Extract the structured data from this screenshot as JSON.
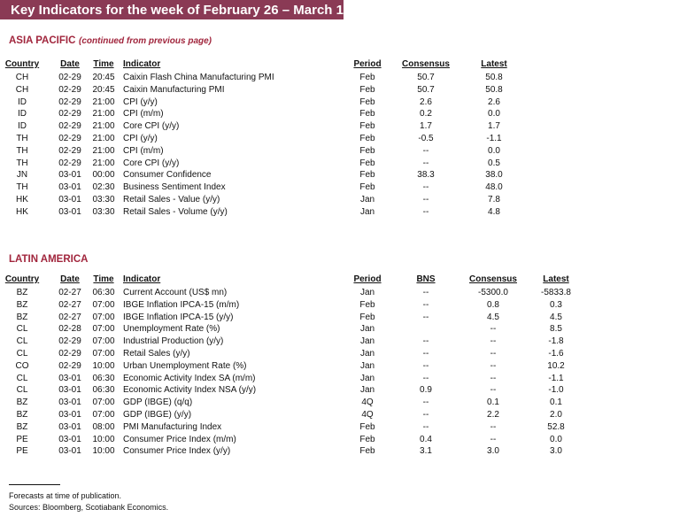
{
  "header": {
    "title": "Key Indicators for the week of February 26 – March 1"
  },
  "sections": [
    {
      "title": "ASIA PACIFIC",
      "subtitle": "(continued from previous page)",
      "columns": [
        "Country",
        "Date",
        "Time",
        "Indicator",
        "Period",
        "Consensus",
        "Latest"
      ],
      "rows": [
        [
          "CH",
          "02-29",
          "20:45",
          "Caixin Flash China Manufacturing PMI",
          "Feb",
          "50.7",
          "50.8"
        ],
        [
          "CH",
          "02-29",
          "20:45",
          "Caixin Manufacturing PMI",
          "Feb",
          "50.7",
          "50.8"
        ],
        [
          "ID",
          "02-29",
          "21:00",
          "CPI (y/y)",
          "Feb",
          "2.6",
          "2.6"
        ],
        [
          "ID",
          "02-29",
          "21:00",
          "CPI (m/m)",
          "Feb",
          "0.2",
          "0.0"
        ],
        [
          "ID",
          "02-29",
          "21:00",
          "Core CPI (y/y)",
          "Feb",
          "1.7",
          "1.7"
        ],
        [
          "TH",
          "02-29",
          "21:00",
          "CPI (y/y)",
          "Feb",
          "-0.5",
          "-1.1"
        ],
        [
          "TH",
          "02-29",
          "21:00",
          "CPI (m/m)",
          "Feb",
          "--",
          "0.0"
        ],
        [
          "TH",
          "02-29",
          "21:00",
          "Core CPI (y/y)",
          "Feb",
          "--",
          "0.5"
        ],
        [
          "JN",
          "03-01",
          "00:00",
          "Consumer Confidence",
          "Feb",
          "38.3",
          "38.0"
        ],
        [
          "TH",
          "03-01",
          "02:30",
          "Business Sentiment Index",
          "Feb",
          "--",
          "48.0"
        ],
        [
          "HK",
          "03-01",
          "03:30",
          "Retail Sales - Value (y/y)",
          "Jan",
          "--",
          "7.8"
        ],
        [
          "HK",
          "03-01",
          "03:30",
          "Retail Sales - Volume (y/y)",
          "Jan",
          "--",
          "4.8"
        ]
      ]
    },
    {
      "title": "LATIN AMERICA",
      "columns": [
        "Country",
        "Date",
        "Time",
        "Indicator",
        "Period",
        "BNS",
        "Consensus",
        "Latest"
      ],
      "rows": [
        [
          "BZ",
          "02-27",
          "06:30",
          "Current Account (US$ mn)",
          "Jan",
          "--",
          "-5300.0",
          "-5833.8"
        ],
        [
          "BZ",
          "02-27",
          "07:00",
          "IBGE Inflation IPCA-15 (m/m)",
          "Feb",
          "--",
          "0.8",
          "0.3"
        ],
        [
          "BZ",
          "02-27",
          "07:00",
          "IBGE Inflation IPCA-15 (y/y)",
          "Feb",
          "--",
          "4.5",
          "4.5"
        ],
        [
          "CL",
          "02-28",
          "07:00",
          "Unemployment Rate (%)",
          "Jan",
          null,
          "--",
          "8.5"
        ],
        [
          "CL",
          "02-29",
          "07:00",
          "Industrial Production (y/y)",
          "Jan",
          "--",
          "--",
          "-1.8"
        ],
        [
          "CL",
          "02-29",
          "07:00",
          "Retail Sales (y/y)",
          "Jan",
          "--",
          "--",
          "-1.6"
        ],
        [
          "CO",
          "02-29",
          "10:00",
          "Urban Unemployment Rate (%)",
          "Jan",
          "--",
          "--",
          "10.2"
        ],
        [
          "CL",
          "03-01",
          "06:30",
          "Economic Activity Index SA (m/m)",
          "Jan",
          "--",
          "--",
          "-1.1"
        ],
        [
          "CL",
          "03-01",
          "06:30",
          "Economic Activity Index NSA (y/y)",
          "Jan",
          "0.9",
          "--",
          "-1.0"
        ],
        [
          "BZ",
          "03-01",
          "07:00",
          "GDP (IBGE) (q/q)",
          "4Q",
          "--",
          "0.1",
          "0.1"
        ],
        [
          "BZ",
          "03-01",
          "07:00",
          "GDP (IBGE) (y/y)",
          "4Q",
          "--",
          "2.2",
          "2.0"
        ],
        [
          "BZ",
          "03-01",
          "08:00",
          "PMI Manufacturing Index",
          "Feb",
          "--",
          "--",
          "52.8"
        ],
        [
          "PE",
          "03-01",
          "10:00",
          "Consumer Price Index (m/m)",
          "Feb",
          "0.4",
          "--",
          "0.0"
        ],
        [
          "PE",
          "03-01",
          "10:00",
          "Consumer Price Index (y/y)",
          "Feb",
          "3.1",
          "3.0",
          "3.0"
        ]
      ]
    }
  ],
  "footnotes": [
    "Forecasts at time of publication.",
    "Sources: Bloomberg, Scotiabank Economics."
  ]
}
